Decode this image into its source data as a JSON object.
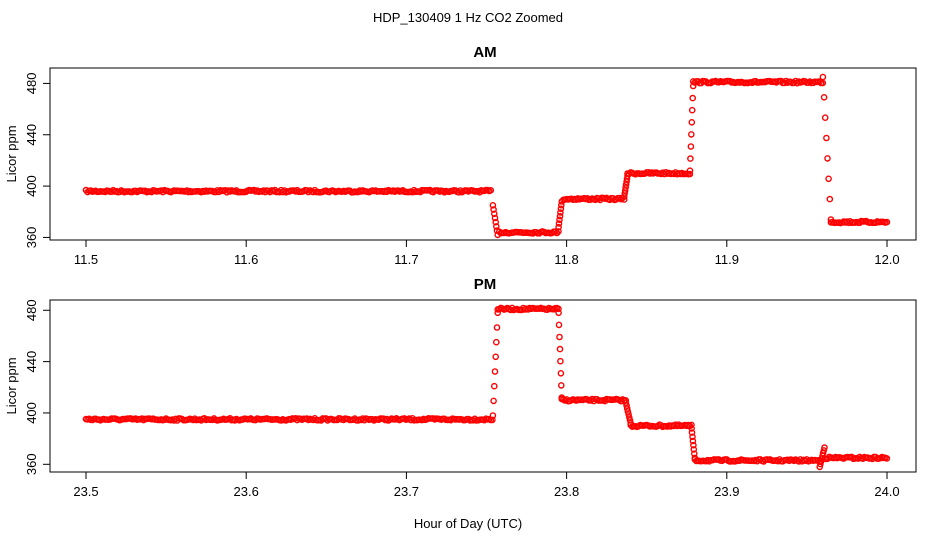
{
  "figure": {
    "title": "HDP_130409  1 Hz CO2 Zoomed",
    "xlabel": "Hour of Day (UTC)",
    "point_color": "#ff0000"
  },
  "chart_data": [
    {
      "type": "scatter",
      "title": "AM",
      "xlabel": "",
      "ylabel": "Licor ppm",
      "xlim": [
        11.5,
        12.0
      ],
      "ylim": [
        358,
        492
      ],
      "xticks": [
        "11.5",
        "11.6",
        "11.7",
        "11.8",
        "11.9",
        "12.0"
      ],
      "yticks": [
        "360",
        "400",
        "440",
        "480"
      ],
      "series": [
        {
          "segments": [
            {
              "x": [
                11.5,
                11.753
              ],
              "y": 396
            },
            {
              "x": [
                11.758,
                11.795
              ],
              "y": 364
            },
            {
              "x": [
                11.798,
                11.836
              ],
              "y": 390
            },
            {
              "x": [
                11.838,
                11.877
              ],
              "y": 410
            },
            {
              "x": [
                11.879,
                11.96
              ],
              "y": 481
            },
            {
              "x": [
                11.965,
                12.0
              ],
              "y": 372
            }
          ],
          "transitions": [
            {
              "x": [
                11.754,
                11.757
              ],
              "y": [
                385,
                362
              ]
            },
            {
              "x": [
                11.795,
                11.797
              ],
              "y": [
                368,
                388
              ]
            },
            {
              "x": [
                11.836,
                11.838
              ],
              "y": [
                392,
                408
              ]
            },
            {
              "x": [
                11.877,
                11.879
              ],
              "y": [
                412,
                478
              ]
            },
            {
              "x": [
                11.96,
                11.965
              ],
              "y": [
                485,
                374
              ]
            }
          ]
        }
      ]
    },
    {
      "type": "scatter",
      "title": "PM",
      "xlabel": "",
      "ylabel": "Licor ppm",
      "xlim": [
        23.5,
        24.0
      ],
      "ylim": [
        354,
        488
      ],
      "xticks": [
        "23.5",
        "23.6",
        "23.7",
        "23.8",
        "23.9",
        "24.0"
      ],
      "yticks": [
        "360",
        "400",
        "440",
        "480"
      ],
      "series": [
        {
          "segments": [
            {
              "x": [
                23.5,
                23.754
              ],
              "y": 395
            },
            {
              "x": [
                23.757,
                23.795
              ],
              "y": 481
            },
            {
              "x": [
                23.797,
                23.837
              ],
              "y": 410
            },
            {
              "x": [
                23.84,
                23.878
              ],
              "y": 390
            },
            {
              "x": [
                23.88,
                23.958
              ],
              "y": 363
            },
            {
              "x": [
                23.961,
                24.0
              ],
              "y": 365
            }
          ],
          "transitions": [
            {
              "x": [
                23.754,
                23.757
              ],
              "y": [
                398,
                478
              ]
            },
            {
              "x": [
                23.795,
                23.797
              ],
              "y": [
                478,
                412
              ]
            },
            {
              "x": [
                23.837,
                23.84
              ],
              "y": [
                408,
                392
              ]
            },
            {
              "x": [
                23.878,
                23.88
              ],
              "y": [
                388,
                365
              ]
            },
            {
              "x": [
                23.958,
                23.961
              ],
              "y": [
                358,
                373
              ]
            }
          ]
        }
      ]
    }
  ]
}
